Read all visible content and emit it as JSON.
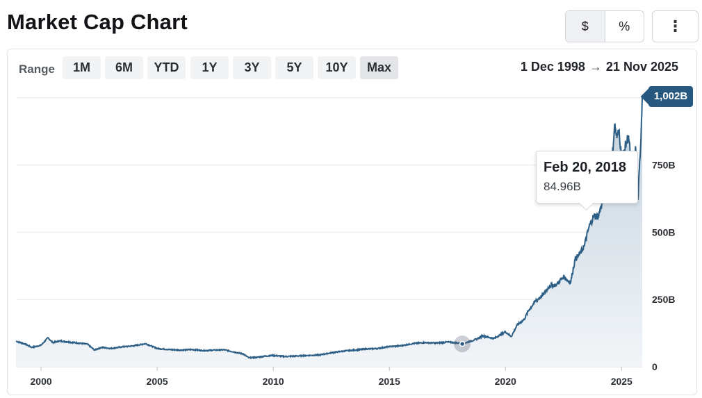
{
  "page_title": "Market Cap Chart",
  "toggle": {
    "dollar": "$",
    "percent": "%"
  },
  "menu_icon": "vertical-ellipsis-icon",
  "range": {
    "label": "Range",
    "buttons": [
      "1M",
      "6M",
      "YTD",
      "1Y",
      "3Y",
      "5Y",
      "10Y",
      "Max"
    ],
    "active": "Max"
  },
  "date_range": {
    "from": "1 Dec 1998",
    "arrow": "→",
    "to": "21 Nov 2025"
  },
  "tooltip": {
    "date": "Feb 20, 2018",
    "value": "84.96B"
  },
  "last_value_badge": "1,002B",
  "colors": {
    "line": "#2d5f86",
    "area_top": "#c3d2de",
    "area_bottom": "#f2f5f8",
    "badge": "#275980"
  },
  "chart_data": {
    "type": "area",
    "title": "",
    "xlabel": "",
    "ylabel": "",
    "x_ticks": [
      "2000",
      "2005",
      "2010",
      "2015",
      "2020",
      "2025"
    ],
    "y_ticks": [
      "0",
      "250B",
      "500B",
      "750B"
    ],
    "ylim": [
      0,
      1000
    ],
    "xlim": [
      1998.92,
      2025.89
    ],
    "grid": "horizontal",
    "unit": "billion USD",
    "series": [
      {
        "x": [
          1998.92,
          1999.3,
          1999.6,
          2000.0,
          2000.3,
          2000.5,
          2000.8,
          2001.2,
          2001.6,
          2002.0,
          2002.3,
          2002.6,
          2003.0,
          2003.5,
          2004.0,
          2004.5,
          2005.0,
          2005.5,
          2006.0,
          2006.5,
          2007.0,
          2007.5,
          2007.9,
          2008.3,
          2008.7,
          2008.95,
          2009.3,
          2009.7,
          2010.0,
          2010.5,
          2011.0,
          2011.5,
          2012.0,
          2012.5,
          2013.0,
          2013.5,
          2014.0,
          2014.5,
          2015.0,
          2015.5,
          2016.0,
          2016.5,
          2017.0,
          2017.5,
          2018.0,
          2018.14,
          2018.5,
          2018.8,
          2019.0,
          2019.5,
          2020.0,
          2020.25,
          2020.5,
          2020.8,
          2021.0,
          2021.3,
          2021.6,
          2021.9,
          2022.2,
          2022.5,
          2022.8,
          2023.0,
          2023.2,
          2023.4,
          2023.6,
          2023.8,
          2024.0,
          2024.2,
          2024.4,
          2024.6,
          2024.7,
          2024.8,
          2024.9,
          2025.0,
          2025.1,
          2025.2,
          2025.3,
          2025.45,
          2025.6,
          2025.7,
          2025.8,
          2025.89
        ],
        "y": [
          95,
          85,
          72,
          80,
          108,
          90,
          96,
          92,
          88,
          84,
          62,
          72,
          68,
          74,
          78,
          86,
          68,
          64,
          62,
          64,
          60,
          62,
          63,
          55,
          48,
          33,
          35,
          40,
          42,
          38,
          40,
          42,
          44,
          52,
          58,
          62,
          66,
          68,
          75,
          78,
          86,
          90,
          88,
          92,
          88,
          84.96,
          95,
          104,
          115,
          105,
          130,
          112,
          155,
          175,
          210,
          245,
          265,
          300,
          305,
          335,
          312,
          400,
          420,
          450,
          520,
          560,
          560,
          620,
          650,
          780,
          900,
          850,
          880,
          770,
          800,
          830,
          860,
          720,
          820,
          620,
          780,
          1002
        ]
      }
    ],
    "highlight_point": {
      "date": "Feb 20, 2018",
      "value": 84.96
    },
    "last_value": 1002
  }
}
